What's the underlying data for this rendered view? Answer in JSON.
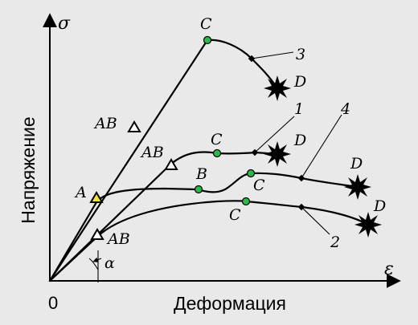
{
  "colors": {
    "background": "#e9e9e9",
    "point_green": "#2db84a",
    "point_yellow": "#f2e23c",
    "ink": "#000000"
  },
  "axes": {
    "y_label": "Напряжение",
    "x_label": "Деформация",
    "y_symbol": "σ",
    "x_symbol": "ε",
    "origin": "0",
    "angle_symbol": "α"
  },
  "curves": {
    "curve_1": "1",
    "curve_2": "2",
    "curve_3": "3",
    "curve_4": "4"
  },
  "points": {
    "A": "A",
    "AB": "AB",
    "B": "B",
    "C": "C",
    "D": "D"
  }
}
